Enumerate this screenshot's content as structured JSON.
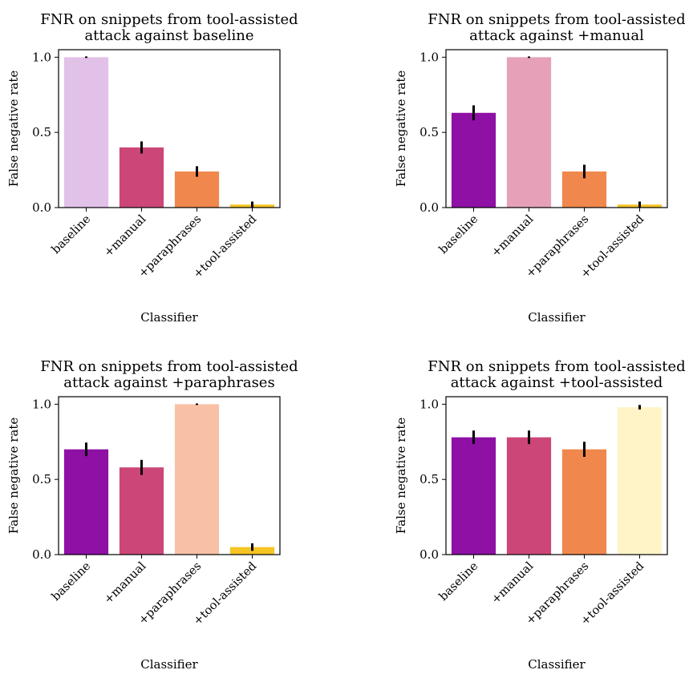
{
  "chart_data": [
    {
      "type": "bar",
      "title_lines": [
        "FNR on snippets from tool-assisted",
        "attack against baseline"
      ],
      "xlabel": "Classifier",
      "ylabel": "False negative rate",
      "ylim": [
        0,
        1.05
      ],
      "yticks": [
        "0.0",
        "0.5",
        "1.0"
      ],
      "categories": [
        "baseline",
        "+manual",
        "+paraphrases",
        "+tool-assisted"
      ],
      "values": [
        1.0,
        0.4,
        0.24,
        0.02
      ],
      "errors": [
        0.005,
        0.04,
        0.035,
        0.02
      ],
      "colors": [
        "#e2c1e8",
        "#cc4778",
        "#f0884d",
        "#f6c423"
      ]
    },
    {
      "type": "bar",
      "title_lines": [
        "FNR on snippets from tool-assisted",
        "attack against +manual"
      ],
      "xlabel": "Classifier",
      "ylabel": "False negative rate",
      "ylim": [
        0,
        1.05
      ],
      "yticks": [
        "0.0",
        "0.5",
        "1.0"
      ],
      "categories": [
        "baseline",
        "+manual",
        "+paraphrases",
        "+tool-assisted"
      ],
      "values": [
        0.63,
        1.0,
        0.24,
        0.02
      ],
      "errors": [
        0.05,
        0.005,
        0.045,
        0.02
      ],
      "colors": [
        "#8e10a5",
        "#e6a1b9",
        "#f0884d",
        "#f6c423"
      ]
    },
    {
      "type": "bar",
      "title_lines": [
        "FNR on snippets from tool-assisted",
        "attack against +paraphrases"
      ],
      "xlabel": "Classifier",
      "ylabel": "False negative rate",
      "ylim": [
        0,
        1.05
      ],
      "yticks": [
        "0.0",
        "0.5",
        "1.0"
      ],
      "categories": [
        "baseline",
        "+manual",
        "+paraphrases",
        "+tool-assisted"
      ],
      "values": [
        0.7,
        0.58,
        1.0,
        0.05
      ],
      "errors": [
        0.045,
        0.05,
        0.005,
        0.025
      ],
      "colors": [
        "#8e10a5",
        "#cc4778",
        "#f8c1a5",
        "#f6c423"
      ]
    },
    {
      "type": "bar",
      "title_lines": [
        "FNR on snippets from tool-assisted",
        "attack against +tool-assisted"
      ],
      "xlabel": "Classifier",
      "ylabel": "False negative rate",
      "ylim": [
        0,
        1.05
      ],
      "yticks": [
        "0.0",
        "0.5",
        "1.0"
      ],
      "categories": [
        "baseline",
        "+manual",
        "+paraphrases",
        "+tool-assisted"
      ],
      "values": [
        0.78,
        0.78,
        0.7,
        0.98
      ],
      "errors": [
        0.045,
        0.045,
        0.05,
        0.015
      ],
      "colors": [
        "#8e10a5",
        "#cc4778",
        "#f0884d",
        "#fff4c8"
      ]
    }
  ]
}
